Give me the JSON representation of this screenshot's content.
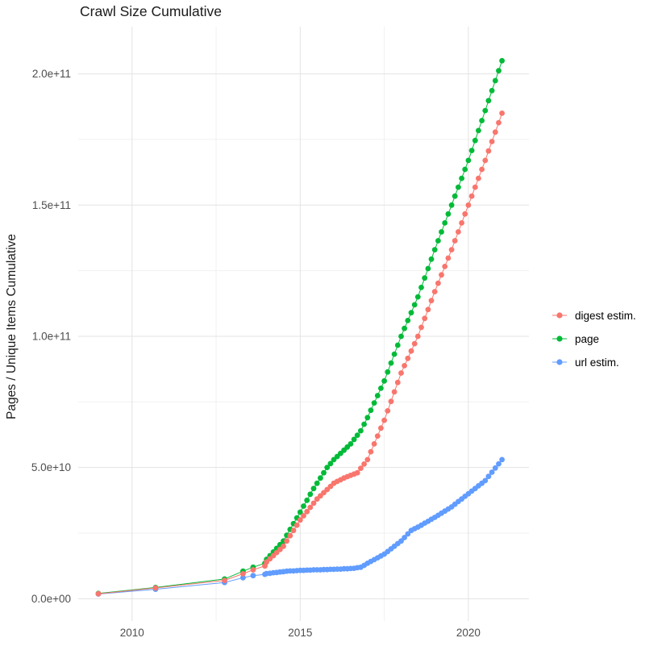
{
  "chart_data": {
    "type": "scatter",
    "title": "Crawl Size Cumulative",
    "xlabel": "",
    "ylabel": "Pages / Unique Items Cumulative",
    "legend_position": "right",
    "grid": true,
    "background": "#ffffff",
    "grid_color_major": "#e3e3e3",
    "grid_color_minor": "#f0f0f0",
    "axis_text_color": "#4d4d4d",
    "x_domain": [
      2008.4,
      2021.8
    ],
    "x_ticks": [
      {
        "value": 2010,
        "label": "2010"
      },
      {
        "value": 2015,
        "label": "2015"
      },
      {
        "value": 2020,
        "label": "2020"
      }
    ],
    "x_minor": [
      2012.5,
      2017.5
    ],
    "y_unit": 1000000000,
    "y_unit_note": "point y values are in billions (1e9)",
    "y_domain_e9": [
      -8.5,
      218
    ],
    "y_ticks": [
      {
        "value_e9": 0,
        "label": "0.0e+00"
      },
      {
        "value_e9": 50,
        "label": "5.0e+10"
      },
      {
        "value_e9": 100,
        "label": "1.0e+11"
      },
      {
        "value_e9": 150,
        "label": "1.5e+11"
      },
      {
        "value_e9": 200,
        "label": "2.0e+11"
      }
    ],
    "y_minor_e9": [
      25,
      75,
      125,
      175
    ],
    "series": [
      {
        "name": "digest estim.",
        "color": "#F8766D",
        "points": [
          [
            2009,
            1.9
          ],
          [
            2010.7,
            4.1
          ],
          [
            2012.75,
            7
          ],
          [
            2013.3,
            9.5
          ],
          [
            2013.6,
            11
          ],
          [
            2013.95,
            12.5
          ],
          [
            2014,
            14
          ],
          [
            2014.1,
            15.2
          ],
          [
            2014.2,
            16.4
          ],
          [
            2014.3,
            17.6
          ],
          [
            2014.4,
            18.8
          ],
          [
            2014.5,
            20
          ],
          [
            2014.6,
            22
          ],
          [
            2014.7,
            24
          ],
          [
            2014.8,
            26
          ],
          [
            2014.9,
            28
          ],
          [
            2015,
            30
          ],
          [
            2015.1,
            31.6
          ],
          [
            2015.2,
            33.2
          ],
          [
            2015.3,
            34.8
          ],
          [
            2015.4,
            36.4
          ],
          [
            2015.5,
            38
          ],
          [
            2015.6,
            39.2
          ],
          [
            2015.7,
            40.4
          ],
          [
            2015.8,
            41.6
          ],
          [
            2015.9,
            42.8
          ],
          [
            2016,
            44
          ],
          [
            2016.1,
            44.7
          ],
          [
            2016.2,
            45.3
          ],
          [
            2016.3,
            46
          ],
          [
            2016.4,
            46.5
          ],
          [
            2016.5,
            47
          ],
          [
            2016.6,
            47.5
          ],
          [
            2016.7,
            48
          ],
          [
            2016.8,
            49.7
          ],
          [
            2016.9,
            51.3
          ],
          [
            2017,
            53
          ],
          [
            2017.1,
            56
          ],
          [
            2017.2,
            59
          ],
          [
            2017.3,
            62
          ],
          [
            2017.4,
            65
          ],
          [
            2017.5,
            68
          ],
          [
            2017.6,
            71.6
          ],
          [
            2017.7,
            75.2
          ],
          [
            2017.8,
            78.8
          ],
          [
            2017.9,
            82.4
          ],
          [
            2018,
            86
          ],
          [
            2018.1,
            88.8
          ],
          [
            2018.2,
            91.6
          ],
          [
            2018.3,
            94.4
          ],
          [
            2018.4,
            97.2
          ],
          [
            2018.5,
            100
          ],
          [
            2018.6,
            103.4
          ],
          [
            2018.7,
            106.8
          ],
          [
            2018.8,
            110.2
          ],
          [
            2018.9,
            113.6
          ],
          [
            2019,
            117
          ],
          [
            2019.1,
            120.2
          ],
          [
            2019.2,
            123.4
          ],
          [
            2019.3,
            126.6
          ],
          [
            2019.4,
            129.8
          ],
          [
            2019.5,
            133
          ],
          [
            2019.6,
            136.4
          ],
          [
            2019.7,
            139.8
          ],
          [
            2019.8,
            143.2
          ],
          [
            2019.9,
            146.6
          ],
          [
            2020,
            150
          ],
          [
            2020.1,
            153.4
          ],
          [
            2020.2,
            156.8
          ],
          [
            2020.3,
            160.2
          ],
          [
            2020.4,
            163.6
          ],
          [
            2020.5,
            167
          ],
          [
            2020.6,
            170.6
          ],
          [
            2020.7,
            174.2
          ],
          [
            2020.8,
            177.8
          ],
          [
            2020.9,
            181.4
          ],
          [
            2021,
            185
          ]
        ]
      },
      {
        "name": "page",
        "color": "#00BA38",
        "points": [
          [
            2009,
            2
          ],
          [
            2010.7,
            4.3
          ],
          [
            2012.75,
            7.5
          ],
          [
            2013.3,
            10.5
          ],
          [
            2013.6,
            12
          ],
          [
            2013.95,
            13.5
          ],
          [
            2014,
            15
          ],
          [
            2014.1,
            16.4
          ],
          [
            2014.2,
            17.8
          ],
          [
            2014.3,
            19.2
          ],
          [
            2014.4,
            20.6
          ],
          [
            2014.5,
            22
          ],
          [
            2014.6,
            24.2
          ],
          [
            2014.7,
            26.4
          ],
          [
            2014.8,
            28.6
          ],
          [
            2014.9,
            30.8
          ],
          [
            2015,
            33
          ],
          [
            2015.1,
            35.3
          ],
          [
            2015.2,
            37.5
          ],
          [
            2015.3,
            39.8
          ],
          [
            2015.4,
            42
          ],
          [
            2015.5,
            44
          ],
          [
            2015.6,
            46
          ],
          [
            2015.7,
            48
          ],
          [
            2015.8,
            50
          ],
          [
            2015.9,
            51.5
          ],
          [
            2016,
            53
          ],
          [
            2016.1,
            54.2
          ],
          [
            2016.2,
            55.4
          ],
          [
            2016.3,
            56.6
          ],
          [
            2016.4,
            57.8
          ],
          [
            2016.5,
            59
          ],
          [
            2016.6,
            60.7
          ],
          [
            2016.7,
            62.3
          ],
          [
            2016.8,
            64
          ],
          [
            2016.9,
            66.5
          ],
          [
            2017,
            69
          ],
          [
            2017.1,
            71.8
          ],
          [
            2017.2,
            74.6
          ],
          [
            2017.3,
            77.4
          ],
          [
            2017.4,
            80.2
          ],
          [
            2017.5,
            83
          ],
          [
            2017.6,
            86.4
          ],
          [
            2017.7,
            89.8
          ],
          [
            2017.8,
            93.2
          ],
          [
            2017.9,
            96.6
          ],
          [
            2018,
            100
          ],
          [
            2018.1,
            103
          ],
          [
            2018.2,
            106
          ],
          [
            2018.3,
            109
          ],
          [
            2018.4,
            112
          ],
          [
            2018.5,
            115
          ],
          [
            2018.6,
            118.6
          ],
          [
            2018.7,
            122.2
          ],
          [
            2018.8,
            125.8
          ],
          [
            2018.9,
            129.4
          ],
          [
            2019,
            133
          ],
          [
            2019.1,
            136.4
          ],
          [
            2019.2,
            139.8
          ],
          [
            2019.3,
            143.2
          ],
          [
            2019.4,
            146.6
          ],
          [
            2019.5,
            150
          ],
          [
            2019.6,
            153.4
          ],
          [
            2019.7,
            156.8
          ],
          [
            2019.8,
            160.2
          ],
          [
            2019.9,
            163.6
          ],
          [
            2020,
            167
          ],
          [
            2020.1,
            170.8
          ],
          [
            2020.2,
            174.6
          ],
          [
            2020.3,
            178.4
          ],
          [
            2020.4,
            182.2
          ],
          [
            2020.5,
            186
          ],
          [
            2020.6,
            189.8
          ],
          [
            2020.7,
            193.6
          ],
          [
            2020.8,
            197.4
          ],
          [
            2020.9,
            201.2
          ],
          [
            2021,
            205
          ]
        ]
      },
      {
        "name": "url estim.",
        "color": "#619CFF",
        "points": [
          [
            2009,
            1.8
          ],
          [
            2010.7,
            3.6
          ],
          [
            2012.75,
            6.2
          ],
          [
            2013.3,
            8
          ],
          [
            2013.6,
            8.8
          ],
          [
            2013.95,
            9.3
          ],
          [
            2014,
            9.6
          ],
          [
            2014.1,
            9.7
          ],
          [
            2014.2,
            9.9
          ],
          [
            2014.3,
            10
          ],
          [
            2014.4,
            10.2
          ],
          [
            2014.5,
            10.3
          ],
          [
            2014.6,
            10.5
          ],
          [
            2014.7,
            10.6
          ],
          [
            2014.8,
            10.6
          ],
          [
            2014.9,
            10.7
          ],
          [
            2015,
            10.8
          ],
          [
            2015.1,
            10.8
          ],
          [
            2015.2,
            10.9
          ],
          [
            2015.3,
            10.9
          ],
          [
            2015.4,
            11
          ],
          [
            2015.5,
            11
          ],
          [
            2015.6,
            11
          ],
          [
            2015.7,
            11.1
          ],
          [
            2015.8,
            11.1
          ],
          [
            2015.9,
            11.2
          ],
          [
            2016,
            11.2
          ],
          [
            2016.1,
            11.3
          ],
          [
            2016.2,
            11.3
          ],
          [
            2016.3,
            11.4
          ],
          [
            2016.4,
            11.4
          ],
          [
            2016.5,
            11.5
          ],
          [
            2016.6,
            11.6
          ],
          [
            2016.7,
            11.8
          ],
          [
            2016.8,
            12
          ],
          [
            2016.9,
            12.7
          ],
          [
            2017,
            13.5
          ],
          [
            2017.1,
            14.2
          ],
          [
            2017.2,
            14.9
          ],
          [
            2017.3,
            15.6
          ],
          [
            2017.4,
            16.3
          ],
          [
            2017.5,
            17
          ],
          [
            2017.6,
            18
          ],
          [
            2017.7,
            19
          ],
          [
            2017.8,
            20
          ],
          [
            2017.9,
            21
          ],
          [
            2018,
            22
          ],
          [
            2018.1,
            23.3
          ],
          [
            2018.2,
            24.7
          ],
          [
            2018.3,
            26
          ],
          [
            2018.4,
            26.7
          ],
          [
            2018.5,
            27.3
          ],
          [
            2018.6,
            28
          ],
          [
            2018.7,
            28.8
          ],
          [
            2018.8,
            29.5
          ],
          [
            2018.9,
            30.3
          ],
          [
            2019,
            31
          ],
          [
            2019.1,
            31.8
          ],
          [
            2019.2,
            32.6
          ],
          [
            2019.3,
            33.4
          ],
          [
            2019.4,
            34.2
          ],
          [
            2019.5,
            35
          ],
          [
            2019.6,
            36
          ],
          [
            2019.7,
            37
          ],
          [
            2019.8,
            38
          ],
          [
            2019.9,
            39
          ],
          [
            2020,
            40
          ],
          [
            2020.1,
            41
          ],
          [
            2020.2,
            42
          ],
          [
            2020.3,
            43
          ],
          [
            2020.4,
            44
          ],
          [
            2020.5,
            45
          ],
          [
            2020.6,
            46.6
          ],
          [
            2020.7,
            48.2
          ],
          [
            2020.8,
            49.8
          ],
          [
            2020.9,
            51.4
          ],
          [
            2021,
            53
          ]
        ]
      }
    ]
  },
  "legend": {
    "items": [
      {
        "label": "digest estim.",
        "color": "#F8766D"
      },
      {
        "label": "page",
        "color": "#00BA38"
      },
      {
        "label": "url estim.",
        "color": "#619CFF"
      }
    ]
  }
}
